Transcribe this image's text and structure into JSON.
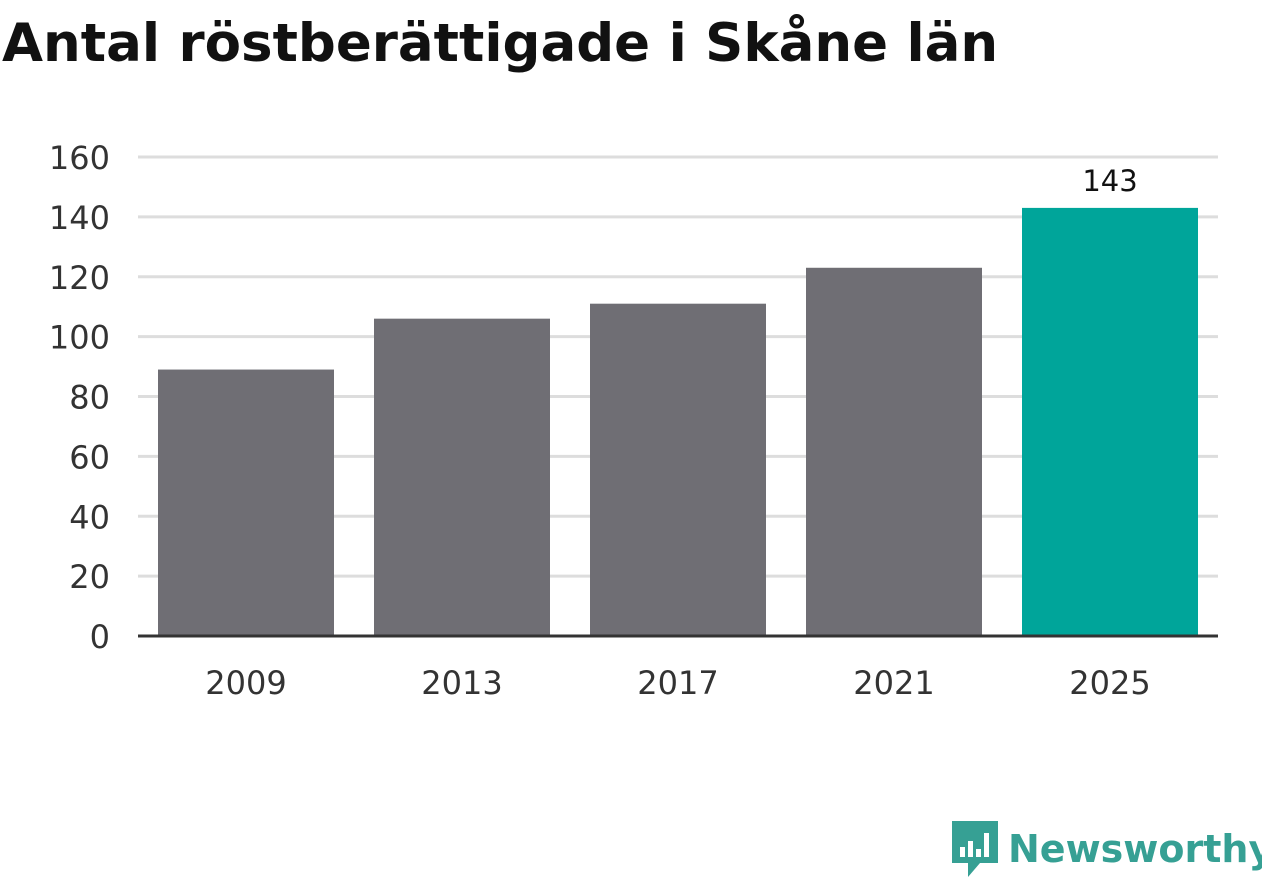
{
  "chart_data": {
    "type": "bar",
    "title": "Antal röstberättigade i Skåne län",
    "categories": [
      "2009",
      "2013",
      "2017",
      "2021",
      "2025"
    ],
    "values": [
      89,
      106,
      111,
      123,
      143
    ],
    "data_labels": [
      "",
      "",
      "",
      "",
      "143"
    ],
    "highlight_index": 4,
    "ylim": [
      0,
      160
    ],
    "yticks": [
      "0",
      "20",
      "40",
      "60",
      "80",
      "100",
      "120",
      "140",
      "160"
    ],
    "grid": true,
    "colors": {
      "bar": "#6f6e74",
      "highlight": "#00a59a",
      "grid": "#dddddd",
      "axis": "#333333",
      "tick_text": "#333333"
    }
  },
  "brand": {
    "name": "Newsworthy",
    "icon": "newsworthy-logo-icon",
    "color": "#36a094"
  }
}
